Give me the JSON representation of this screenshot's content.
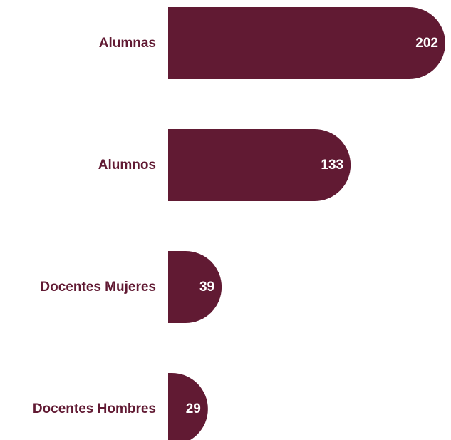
{
  "chart_data": {
    "type": "bar",
    "orientation": "horizontal",
    "categories": [
      "Alumnas",
      "Alumnos",
      "Docentes Mujeres",
      "Docentes Hombres"
    ],
    "values": [
      202,
      133,
      39,
      29
    ],
    "title": "",
    "xlabel": "",
    "ylabel": "",
    "data_labels": true,
    "grid": false,
    "legend": "none",
    "colors": {
      "bar": "#611A33",
      "category_label": "#611A33",
      "value_label": "#FFFFFF"
    }
  }
}
